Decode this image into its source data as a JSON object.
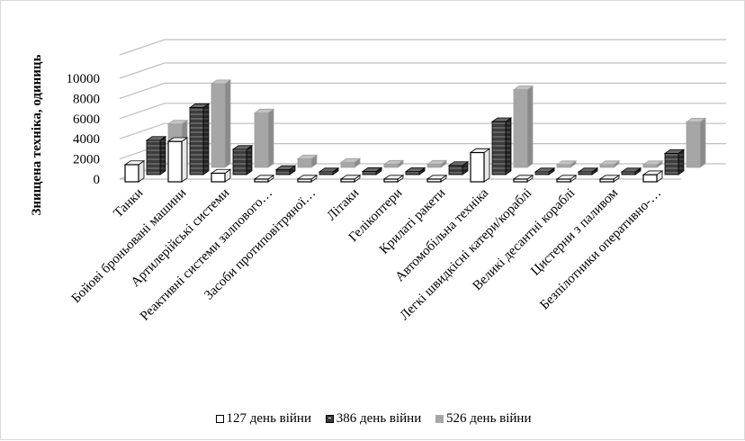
{
  "chart_data": {
    "type": "bar",
    "subtype": "3d-clustered-column",
    "ylabel": "Знищена техніка, одиниць",
    "ylim": [
      0,
      10000
    ],
    "yticks": [
      0,
      2000,
      4000,
      6000,
      8000,
      10000
    ],
    "ytick_labels": [
      "0",
      "2000",
      "4000",
      "6000",
      "8000",
      "10000"
    ],
    "grid": true,
    "legend_position": "bottom",
    "categories": [
      "Танки",
      "Бойові броньовані машини",
      "Артилерійські системи",
      "Реактивні системи залпового…",
      "Засоби протиповітряної…",
      "Літаки",
      "Гелікоптери",
      "Крилаті ракети",
      "Автомобільна техніка",
      "Легкі швидкісні катери/кораблі",
      "Великі десантні кораблі",
      "Цистерни з паливом",
      "Безпілотники  оперативно-…"
    ],
    "series": [
      {
        "name": "127 день війни",
        "color": "#ffffff",
        "values": [
          1700,
          4000,
          850,
          250,
          120,
          220,
          190,
          140,
          2900,
          15,
          5,
          40,
          700
        ]
      },
      {
        "name": "386 день війни",
        "color": "#404040",
        "values": [
          3400,
          6650,
          2500,
          500,
          260,
          300,
          290,
          900,
          5250,
          18,
          10,
          170,
          2100
        ]
      },
      {
        "name": "526 день війни",
        "color": "#a6a6a6",
        "values": [
          4300,
          8300,
          5400,
          850,
          500,
          310,
          310,
          1500,
          7700,
          19,
          4,
          140,
          4500
        ]
      }
    ]
  }
}
